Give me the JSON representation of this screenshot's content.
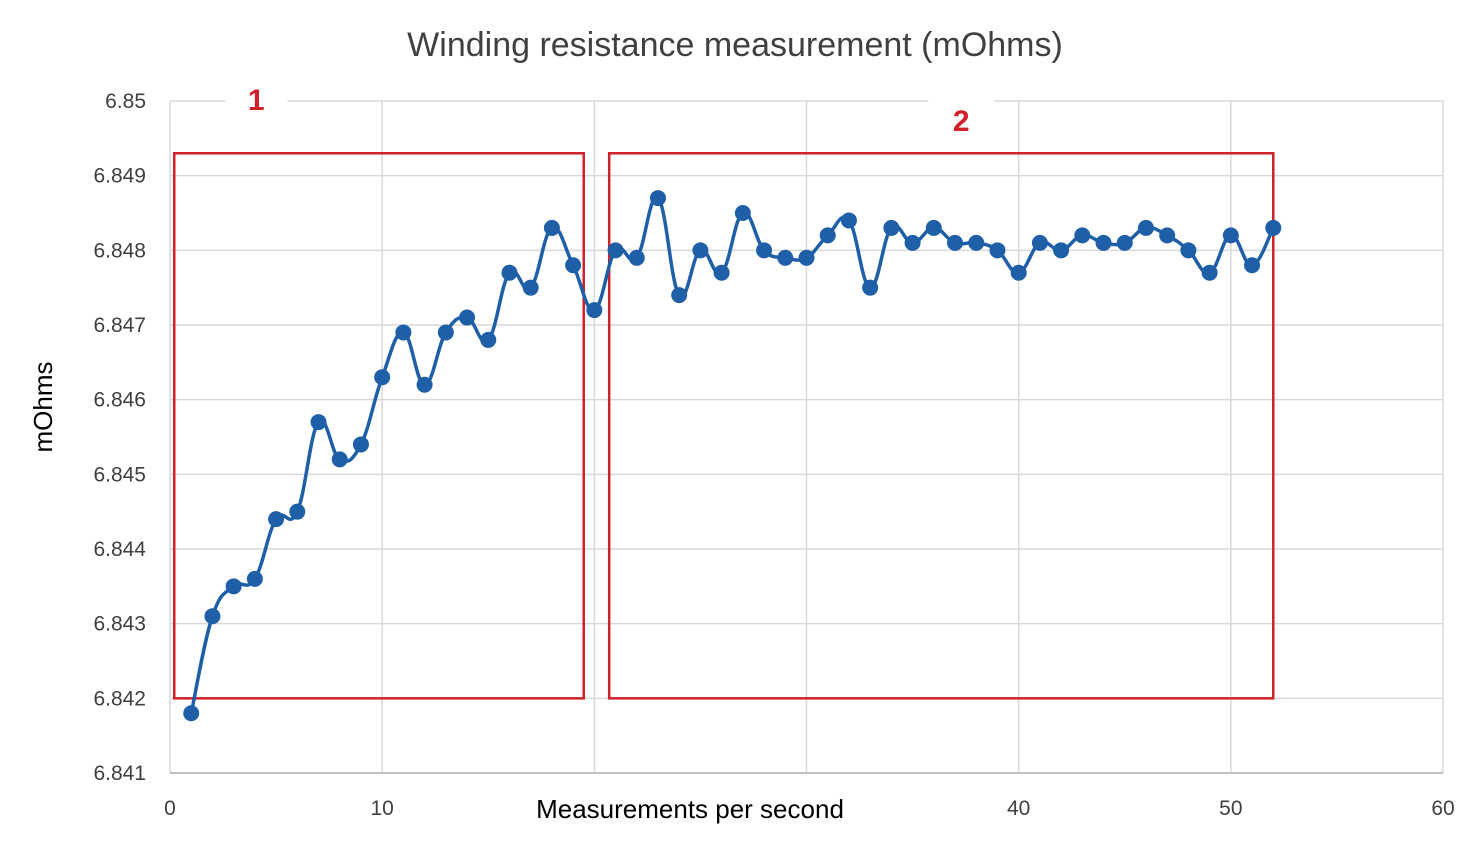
{
  "chart_data": {
    "type": "line",
    "title": "Winding resistance measurement (mOhms)",
    "xlabel": "Measurements per second",
    "ylabel": "mOhms",
    "xlim": [
      0,
      60
    ],
    "ylim": [
      6.841,
      6.85
    ],
    "x_ticks": [
      0,
      10,
      20,
      30,
      40,
      50,
      60
    ],
    "x_tick_labels": [
      "0",
      "10",
      "",
      "",
      "40",
      "50",
      "60"
    ],
    "y_ticks": [
      6.841,
      6.842,
      6.843,
      6.844,
      6.845,
      6.846,
      6.847,
      6.848,
      6.849,
      6.85
    ],
    "y_tick_labels": [
      "6.841",
      "6.842",
      "6.843",
      "6.844",
      "6.845",
      "6.846",
      "6.847",
      "6.848",
      "6.849",
      "6.85"
    ],
    "grid": true,
    "series_color": "#1f5fa8",
    "annotation_color": "#d0202a",
    "x": [
      1,
      2,
      3,
      4,
      5,
      6,
      7,
      8,
      9,
      10,
      11,
      12,
      13,
      14,
      15,
      16,
      17,
      18,
      19,
      20,
      21,
      22,
      23,
      24,
      25,
      26,
      27,
      28,
      29,
      30,
      31,
      32,
      33,
      34,
      35,
      36,
      37,
      38,
      39,
      40,
      41,
      42,
      43,
      44,
      45,
      46,
      47,
      48,
      49,
      50,
      51,
      52
    ],
    "series": [
      {
        "values": [
          6.8418,
          6.8431,
          6.8435,
          6.8436,
          6.8444,
          6.8445,
          6.8457,
          6.8452,
          6.8454,
          6.8463,
          6.8469,
          6.8462,
          6.8469,
          6.8471,
          6.8468,
          6.8477,
          6.8475,
          6.8483,
          6.8478,
          6.8472,
          6.848,
          6.8479,
          6.8487,
          6.8474,
          6.848,
          6.8477,
          6.8485,
          6.848,
          6.8479,
          6.8479,
          6.8482,
          6.8484,
          6.8475,
          6.8483,
          6.8481,
          6.8483,
          6.8481,
          6.8481,
          6.848,
          6.8477,
          6.8481,
          6.848,
          6.8482,
          6.8481,
          6.8481,
          6.8483,
          6.8482,
          6.848,
          6.8477,
          6.8482,
          6.8478,
          6.8483
        ]
      }
    ],
    "annotations": [
      {
        "label": "1",
        "x_range": [
          0.2,
          19.5
        ],
        "y_range": [
          6.842,
          6.8493
        ]
      },
      {
        "label": "2",
        "x_range": [
          20.7,
          52
        ],
        "y_range": [
          6.842,
          6.8493
        ]
      }
    ]
  }
}
